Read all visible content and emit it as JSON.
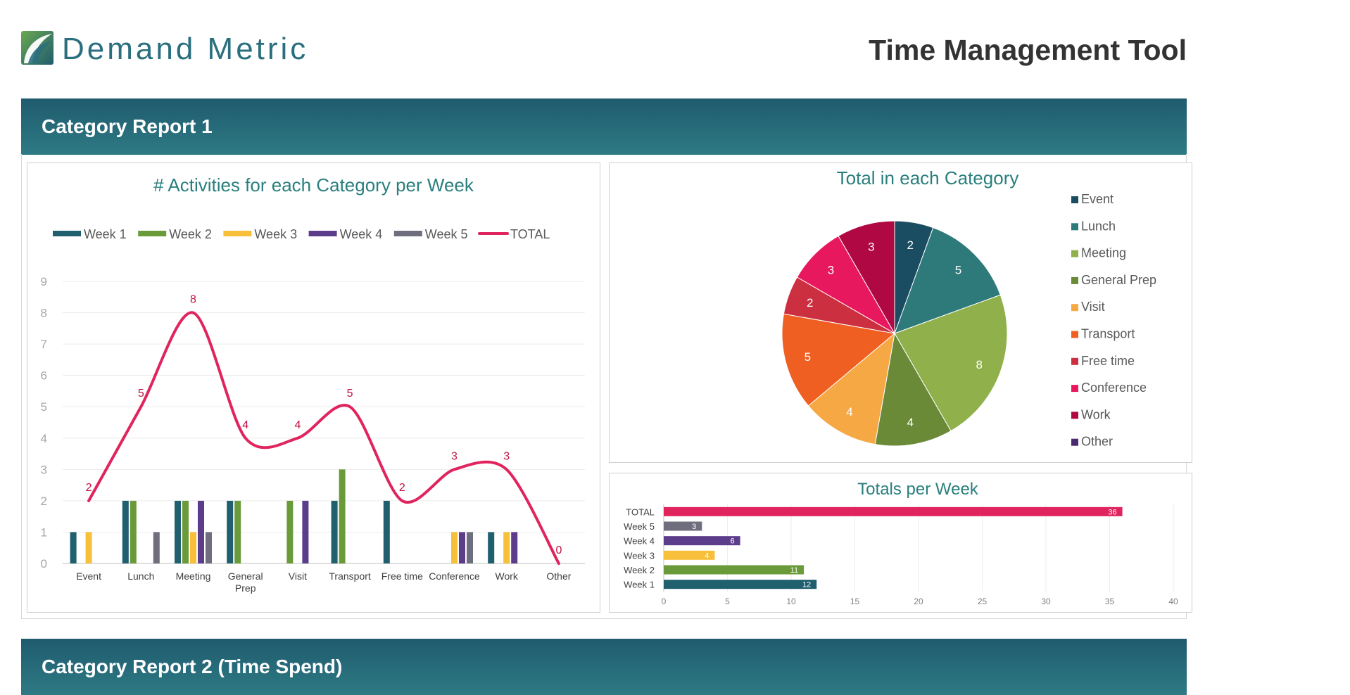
{
  "header": {
    "brand": "Demand Metric",
    "app_title": "Time Management Tool"
  },
  "sections": [
    {
      "title": "Category Report 1"
    },
    {
      "title": "Category Report 2 (Time Spend)"
    }
  ],
  "colors": {
    "band": "#23606f",
    "title_teal": "#2a7f7e",
    "week1": "#1f5f6e",
    "week2": "#6a9a3a",
    "week3": "#f8c03a",
    "week4": "#5c3d8c",
    "week5": "#6e6e7e",
    "total": "#e0245e"
  },
  "chart_data": [
    {
      "type": "bar",
      "title": "# Activities for each Category per Week",
      "categories": [
        "Event",
        "Lunch",
        "Meeting",
        "General Prep",
        "Visit",
        "Transport",
        "Free time",
        "Conference",
        "Work",
        "Other"
      ],
      "series": [
        {
          "name": "Week 1",
          "values": [
            1,
            2,
            2,
            2,
            0,
            2,
            2,
            0,
            1,
            0
          ]
        },
        {
          "name": "Week 2",
          "values": [
            0,
            2,
            2,
            2,
            2,
            3,
            0,
            0,
            0,
            0
          ]
        },
        {
          "name": "Week 3",
          "values": [
            1,
            0,
            1,
            0,
            0,
            0,
            0,
            1,
            1,
            0
          ]
        },
        {
          "name": "Week 4",
          "values": [
            0,
            0,
            2,
            0,
            2,
            0,
            0,
            1,
            1,
            0
          ]
        },
        {
          "name": "Week 5",
          "values": [
            0,
            1,
            1,
            0,
            0,
            0,
            0,
            1,
            0,
            0
          ]
        },
        {
          "name": "TOTAL",
          "type": "line",
          "values": [
            2,
            5,
            8,
            4,
            4,
            5,
            2,
            3,
            3,
            0
          ]
        }
      ],
      "ylim": [
        0,
        9
      ],
      "yticks": [
        0,
        1,
        2,
        3,
        4,
        5,
        6,
        7,
        8,
        9
      ],
      "grid": true,
      "legend": "top"
    },
    {
      "type": "pie",
      "title": "Total in each Category",
      "labels": [
        "Event",
        "Lunch",
        "Meeting",
        "General Prep",
        "Visit",
        "Transport",
        "Free time",
        "Conference",
        "Work",
        "Other"
      ],
      "values": [
        2,
        5,
        8,
        4,
        4,
        5,
        2,
        3,
        3,
        0
      ],
      "colors": [
        "#1b4d62",
        "#2e7a7a",
        "#8fb04a",
        "#6a8a38",
        "#f5a843",
        "#ef5f22",
        "#cc2f3f",
        "#e8185f",
        "#b00843",
        "#4a2a6e"
      ],
      "legend": "right"
    },
    {
      "type": "bar",
      "orientation": "horizontal",
      "title": "Totals per Week",
      "categories": [
        "TOTAL",
        "Week 5",
        "Week 4",
        "Week 3",
        "Week 2",
        "Week 1"
      ],
      "values": [
        36,
        3,
        6,
        4,
        11,
        12
      ],
      "colors": [
        "#e0245e",
        "#6e6e7e",
        "#5c3d8c",
        "#f8c03a",
        "#6a9a3a",
        "#1f5f6e"
      ],
      "xlim": [
        0,
        40
      ],
      "xticks": [
        0,
        5,
        10,
        15,
        20,
        25,
        30,
        35,
        40
      ],
      "grid": true
    }
  ]
}
